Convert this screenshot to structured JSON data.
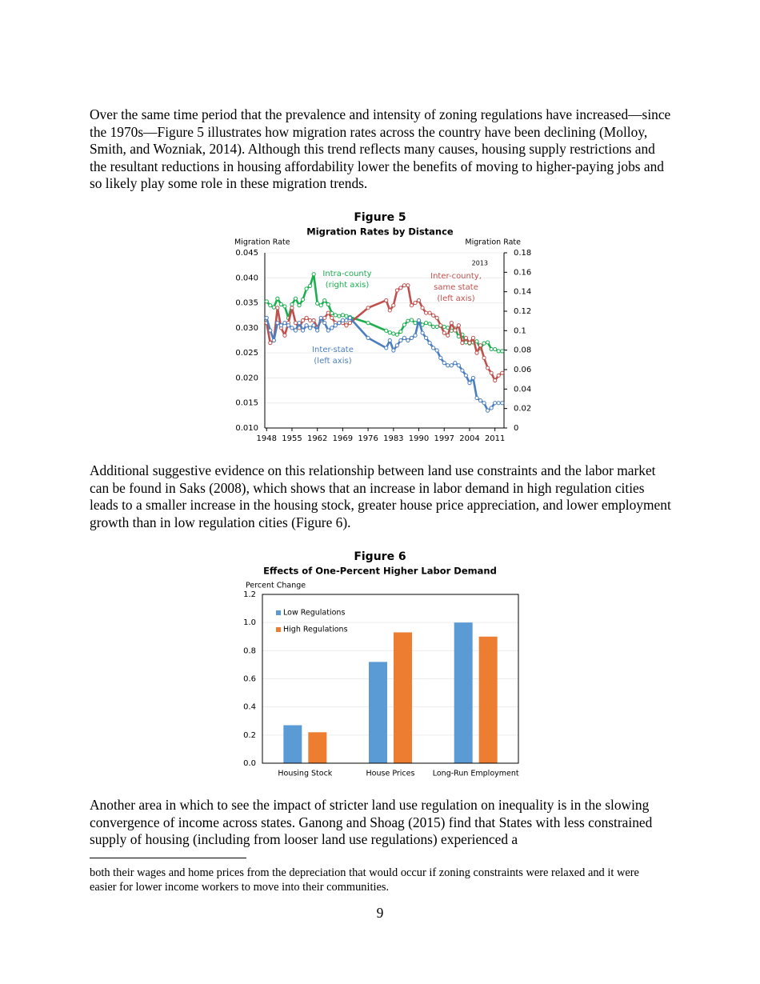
{
  "document": {
    "paragraphs": [
      "Over the same time period that the prevalence and intensity of zoning regulations have increased—since the 1970s—Figure 5 illustrates how migration rates across the country have been declining (Molloy, Smith, and Wozniak, 2014). Although this trend reflects many causes, housing supply restrictions and the resultant reductions in housing affordability lower the benefits of moving to higher-paying jobs and so likely play some role in these migration trends.",
      "Additional suggestive evidence on this relationship between land use constraints and the labor market can be found in Saks (2008), which shows that an increase in labor demand in high regulation cities leads to a smaller increase in the housing stock, greater house price appreciation, and lower employment growth than in low regulation cities (Figure 6).",
      "Another area in which to see the impact of stricter land use regulation on inequality is in the slowing convergence of income across states. Ganong and Shoag (2015) find that States with less constrained supply of housing (including from looser land use regulations) experienced a"
    ],
    "footnote": "both their wages and home prices from the depreciation that would occur if zoning constraints were relaxed and it were easier for lower income workers to move into their communities.",
    "page_number": "9"
  },
  "chart_data": [
    {
      "type": "line",
      "title": "Figure 5",
      "subtitle": "Migration Rates by Distance",
      "y_label": "Migration Rate",
      "y2_label": "Migration Rate",
      "x": [
        1948,
        1949,
        1950,
        1951,
        1952,
        1953,
        1954,
        1955,
        1956,
        1957,
        1958,
        1959,
        1960,
        1961,
        1962,
        1963,
        1964,
        1965,
        1966,
        1967,
        1968,
        1969,
        1970,
        1971,
        1976,
        1981,
        1982,
        1983,
        1984,
        1985,
        1986,
        1987,
        1988,
        1989,
        1990,
        1991,
        1992,
        1993,
        1994,
        1995,
        1996,
        1997,
        1998,
        1999,
        2000,
        2001,
        2002,
        2003,
        2004,
        2005,
        2006,
        2007,
        2008,
        2009,
        2010,
        2011,
        2012,
        2013
      ],
      "series": [
        {
          "color": "#1aae4f",
          "axis": "y2",
          "values": [
            0.13,
            0.126,
            0.124,
            0.133,
            0.127,
            0.125,
            0.113,
            0.127,
            0.133,
            0.126,
            0.132,
            0.143,
            0.146,
            0.158,
            0.128,
            0.126,
            0.131,
            0.127,
            0.118,
            0.116,
            0.115,
            0.116,
            0.115,
            0.114,
            0.108,
            0.1,
            0.098,
            0.097,
            0.096,
            0.099,
            0.106,
            0.11,
            0.111,
            0.108,
            0.11,
            0.106,
            0.108,
            0.107,
            0.104,
            0.104,
            0.105,
            0.104,
            0.103,
            0.1,
            0.102,
            0.094,
            0.096,
            0.088,
            0.087,
            0.088,
            0.089,
            0.082,
            0.087,
            0.088,
            0.081,
            0.081,
            0.079,
            0.079
          ]
        },
        {
          "color": "#c0504d",
          "values": [
            0.031,
            0.027,
            0.0275,
            0.034,
            0.03,
            0.0285,
            0.031,
            0.034,
            0.031,
            0.03,
            0.0315,
            0.032,
            0.0315,
            0.0315,
            0.03,
            0.0315,
            0.032,
            0.033,
            0.032,
            0.031,
            0.031,
            0.031,
            0.0305,
            0.031,
            0.034,
            0.0355,
            0.0335,
            0.0345,
            0.0375,
            0.038,
            0.0385,
            0.0385,
            0.0345,
            0.035,
            0.0355,
            0.034,
            0.033,
            0.033,
            0.0325,
            0.032,
            0.0305,
            0.029,
            0.0285,
            0.031,
            0.0295,
            0.0305,
            0.027,
            0.028,
            0.027,
            0.028,
            0.025,
            0.0265,
            0.024,
            0.022,
            0.021,
            0.0195,
            0.0205,
            0.021
          ]
        },
        {
          "color": "#4a7ebf",
          "values": [
            0.032,
            0.0295,
            0.0275,
            0.031,
            0.0305,
            0.031,
            0.0305,
            0.03,
            0.0295,
            0.031,
            0.0295,
            0.0305,
            0.03,
            0.0305,
            0.0295,
            0.032,
            0.031,
            0.0295,
            0.03,
            0.0305,
            0.031,
            0.0315,
            0.0315,
            0.032,
            0.028,
            0.026,
            0.0275,
            0.0255,
            0.0265,
            0.0275,
            0.028,
            0.0275,
            0.028,
            0.0285,
            0.0315,
            0.029,
            0.028,
            0.027,
            0.026,
            0.0255,
            0.024,
            0.023,
            0.0225,
            0.0225,
            0.023,
            0.0225,
            0.0215,
            0.0205,
            0.019,
            0.02,
            0.016,
            0.0155,
            0.015,
            0.0135,
            0.014,
            0.015,
            0.015,
            0.015
          ]
        }
      ],
      "annotations": [
        {
          "lines": [
            "2013"
          ],
          "color": "#000000"
        },
        {
          "lines": [
            "Intra-county",
            "(right axis)"
          ],
          "color": "#1aae4f"
        },
        {
          "lines": [
            "Inter-county,",
            "same state",
            "(left axis)"
          ],
          "color": "#c0504d"
        },
        {
          "lines": [
            "Inter-state",
            "(left axis)"
          ],
          "color": "#4a7ebf"
        }
      ],
      "xlim": [
        1947.5,
        2013.5
      ],
      "xticks": [
        1948,
        1955,
        1962,
        1969,
        1976,
        1983,
        1990,
        1997,
        2004,
        2011
      ],
      "ylim": [
        0.01,
        0.045
      ],
      "yticks": [
        {
          "value": 0.01,
          "label": "0.010"
        },
        0.015,
        {
          "value": 0.02,
          "label": "0.020"
        },
        0.025,
        {
          "value": 0.03,
          "label": "0.030"
        },
        0.035,
        {
          "value": 0.04,
          "label": "0.040"
        },
        0.045
      ],
      "y2lim": [
        0,
        0.18
      ],
      "y2ticks": [
        0,
        0.02,
        0.04,
        0.06,
        0.08,
        0.1,
        0.12,
        0.14,
        0.16,
        0.18
      ],
      "grid": true
    },
    {
      "type": "bar",
      "title": "Figure 6",
      "subtitle": "Effects of One-Percent Higher Labor Demand",
      "y_label": "Percent Change",
      "categories": [
        "Housing Stock",
        "House Prices",
        "Long-Run Employment"
      ],
      "series": [
        {
          "name": "Low Regulations",
          "color": "#5b9bd5",
          "values": [
            0.27,
            0.72,
            1.0
          ]
        },
        {
          "name": "High Regulations",
          "color": "#ed7d31",
          "values": [
            0.22,
            0.93,
            0.9
          ]
        }
      ],
      "ylim": [
        0,
        1.2
      ],
      "yticks": [
        {
          "value": 0,
          "label": "0.0"
        },
        0.2,
        0.4,
        0.6,
        0.8,
        {
          "value": 1.0,
          "label": "1.0"
        },
        1.2
      ],
      "grid": true,
      "legend": "top-left"
    }
  ]
}
